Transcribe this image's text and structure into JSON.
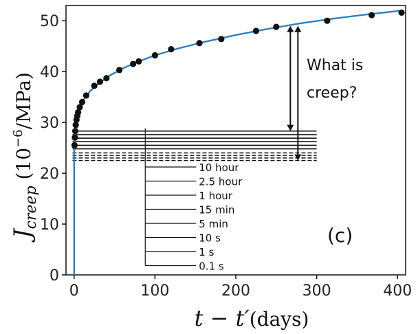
{
  "chart_data": {
    "type": "scatter",
    "xlabel_main": "t − t′",
    "xlabel_unit": "(days)",
    "ylabel_symbol": "J",
    "ylabel_subscript": "creep",
    "ylabel_unit_pre": " (10",
    "ylabel_exp": "−6",
    "ylabel_unit_post": "/MPa)",
    "xlim": [
      -10,
      410
    ],
    "ylim": [
      0,
      53
    ],
    "x_ticks": [
      0,
      100,
      200,
      300,
      400
    ],
    "y_ticks": [
      0,
      10,
      20,
      30,
      40,
      50
    ],
    "x_tick_labels": [
      "0",
      "100",
      "200",
      "300",
      "400"
    ],
    "y_tick_labels": [
      "0",
      "10",
      "20",
      "30",
      "40",
      "50"
    ],
    "measured": {
      "x": [
        0.5,
        1,
        1.5,
        2,
        3,
        4,
        5,
        7,
        10,
        15,
        25,
        32,
        40,
        56,
        73,
        80,
        100,
        120,
        155,
        182,
        225,
        250,
        313,
        368,
        405
      ],
      "y": [
        25.5,
        27.0,
        28.3,
        29.5,
        30.5,
        31.3,
        32.0,
        33.0,
        34.0,
        35.3,
        37.2,
        38.0,
        38.7,
        40.3,
        41.5,
        42.0,
        43.2,
        44.4,
        45.6,
        46.4,
        48.0,
        48.8,
        50.0,
        51.1,
        51.6
      ]
    },
    "fit_curve": {
      "x": [
        0,
        0.01,
        0.05,
        0.2,
        0.5,
        1,
        2,
        3,
        5,
        8,
        12,
        20,
        30,
        45,
        60,
        80,
        100,
        130,
        160,
        200,
        240,
        280,
        320,
        360,
        405
      ],
      "y": [
        0,
        23.0,
        24.2,
        25.3,
        26.4,
        27.6,
        29.0,
        30.0,
        31.6,
        33.1,
        34.5,
        36.2,
        37.6,
        39.3,
        40.6,
        42.0,
        43.2,
        44.6,
        45.8,
        47.2,
        48.4,
        49.5,
        50.4,
        51.2,
        52.0
      ]
    },
    "hold_lines": {
      "labels": [
        "10 hour",
        "2.5 hour",
        "1 hour",
        "15 min",
        "5 min",
        "10 s",
        "1 s",
        "0.1 s"
      ],
      "solid_y": [
        28.3,
        27.6,
        26.9,
        26.2,
        25.5,
        24.8
      ],
      "dashed_y": [
        24.0,
        23.5,
        23.0,
        22.5
      ],
      "x_start": -2,
      "x_end": 300,
      "label_x_start": 88
    },
    "creep_arrow": {
      "x": 270,
      "y_top": 49.0,
      "y_mid": 28.3,
      "y_bottom": 22.5
    },
    "annotation": "What is\ncreep?",
    "annotation_lines": [
      "What is",
      "creep?"
    ],
    "panel_label": "(c)",
    "colors": {
      "fit": "#2f7fc1",
      "points": "#111111",
      "lines": "#111111"
    },
    "grid": false
  }
}
